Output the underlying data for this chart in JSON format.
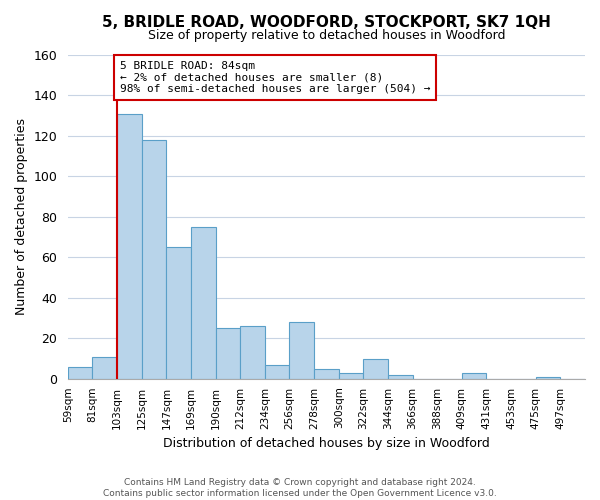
{
  "title": "5, BRIDLE ROAD, WOODFORD, STOCKPORT, SK7 1QH",
  "subtitle": "Size of property relative to detached houses in Woodford",
  "xlabel": "Distribution of detached houses by size in Woodford",
  "ylabel": "Number of detached properties",
  "bar_color": "#b8d4ea",
  "bar_edge_color": "#5a9fc8",
  "bins": [
    "59sqm",
    "81sqm",
    "103sqm",
    "125sqm",
    "147sqm",
    "169sqm",
    "190sqm",
    "212sqm",
    "234sqm",
    "256sqm",
    "278sqm",
    "300sqm",
    "322sqm",
    "344sqm",
    "366sqm",
    "388sqm",
    "409sqm",
    "431sqm",
    "453sqm",
    "475sqm",
    "497sqm"
  ],
  "values": [
    6,
    11,
    131,
    118,
    65,
    75,
    25,
    26,
    7,
    28,
    5,
    3,
    10,
    2,
    0,
    0,
    3,
    0,
    0,
    1,
    0
  ],
  "ylim": [
    0,
    160
  ],
  "yticks": [
    0,
    20,
    40,
    60,
    80,
    100,
    120,
    140,
    160
  ],
  "property_line_x": 2,
  "property_line_color": "#cc0000",
  "annotation_text": "5 BRIDLE ROAD: 84sqm\n← 2% of detached houses are smaller (8)\n98% of semi-detached houses are larger (504) →",
  "annotation_box_color": "#ffffff",
  "annotation_box_edge_color": "#cc0000",
  "footer_line1": "Contains HM Land Registry data © Crown copyright and database right 2024.",
  "footer_line2": "Contains public sector information licensed under the Open Government Licence v3.0.",
  "background_color": "#ffffff",
  "grid_color": "#c8d4e4"
}
